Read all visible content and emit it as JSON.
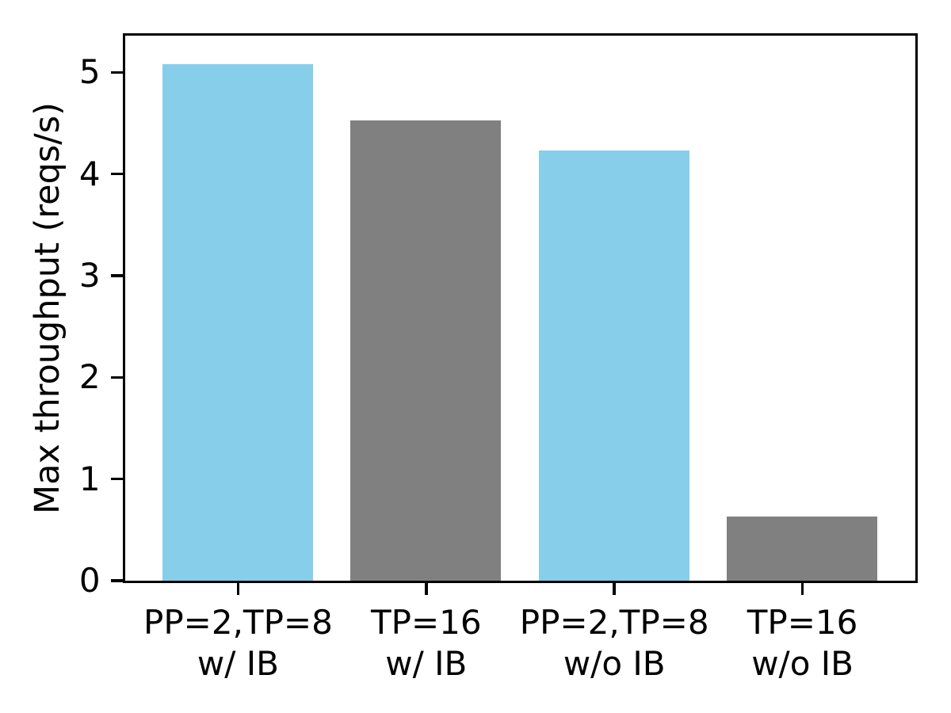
{
  "chart_data": {
    "type": "bar",
    "title": "",
    "xlabel": "",
    "ylabel": "Max throughput (reqs/s)",
    "categories": [
      {
        "line1": "PP=2,TP=8",
        "line2": "w/ IB"
      },
      {
        "line1": "TP=16",
        "line2": "w/ IB"
      },
      {
        "line1": "PP=2,TP=8",
        "line2": "w/o IB"
      },
      {
        "line1": "TP=16",
        "line2": "w/o IB"
      }
    ],
    "values": [
      5.08,
      4.52,
      4.23,
      0.63
    ],
    "bar_colors": [
      "#87CEEB",
      "#808080",
      "#87CEEB",
      "#808080"
    ],
    "yticks": [
      0,
      1,
      2,
      3,
      4,
      5
    ],
    "ylim": [
      0,
      5.36
    ],
    "xlim": [
      -0.6,
      3.6
    ],
    "bar_width_units": 0.8,
    "grid": false,
    "legend": null,
    "colors": {
      "highlight_bar": "#87CEEB",
      "baseline_bar": "#808080",
      "axis": "#000000",
      "background": "#ffffff"
    }
  }
}
